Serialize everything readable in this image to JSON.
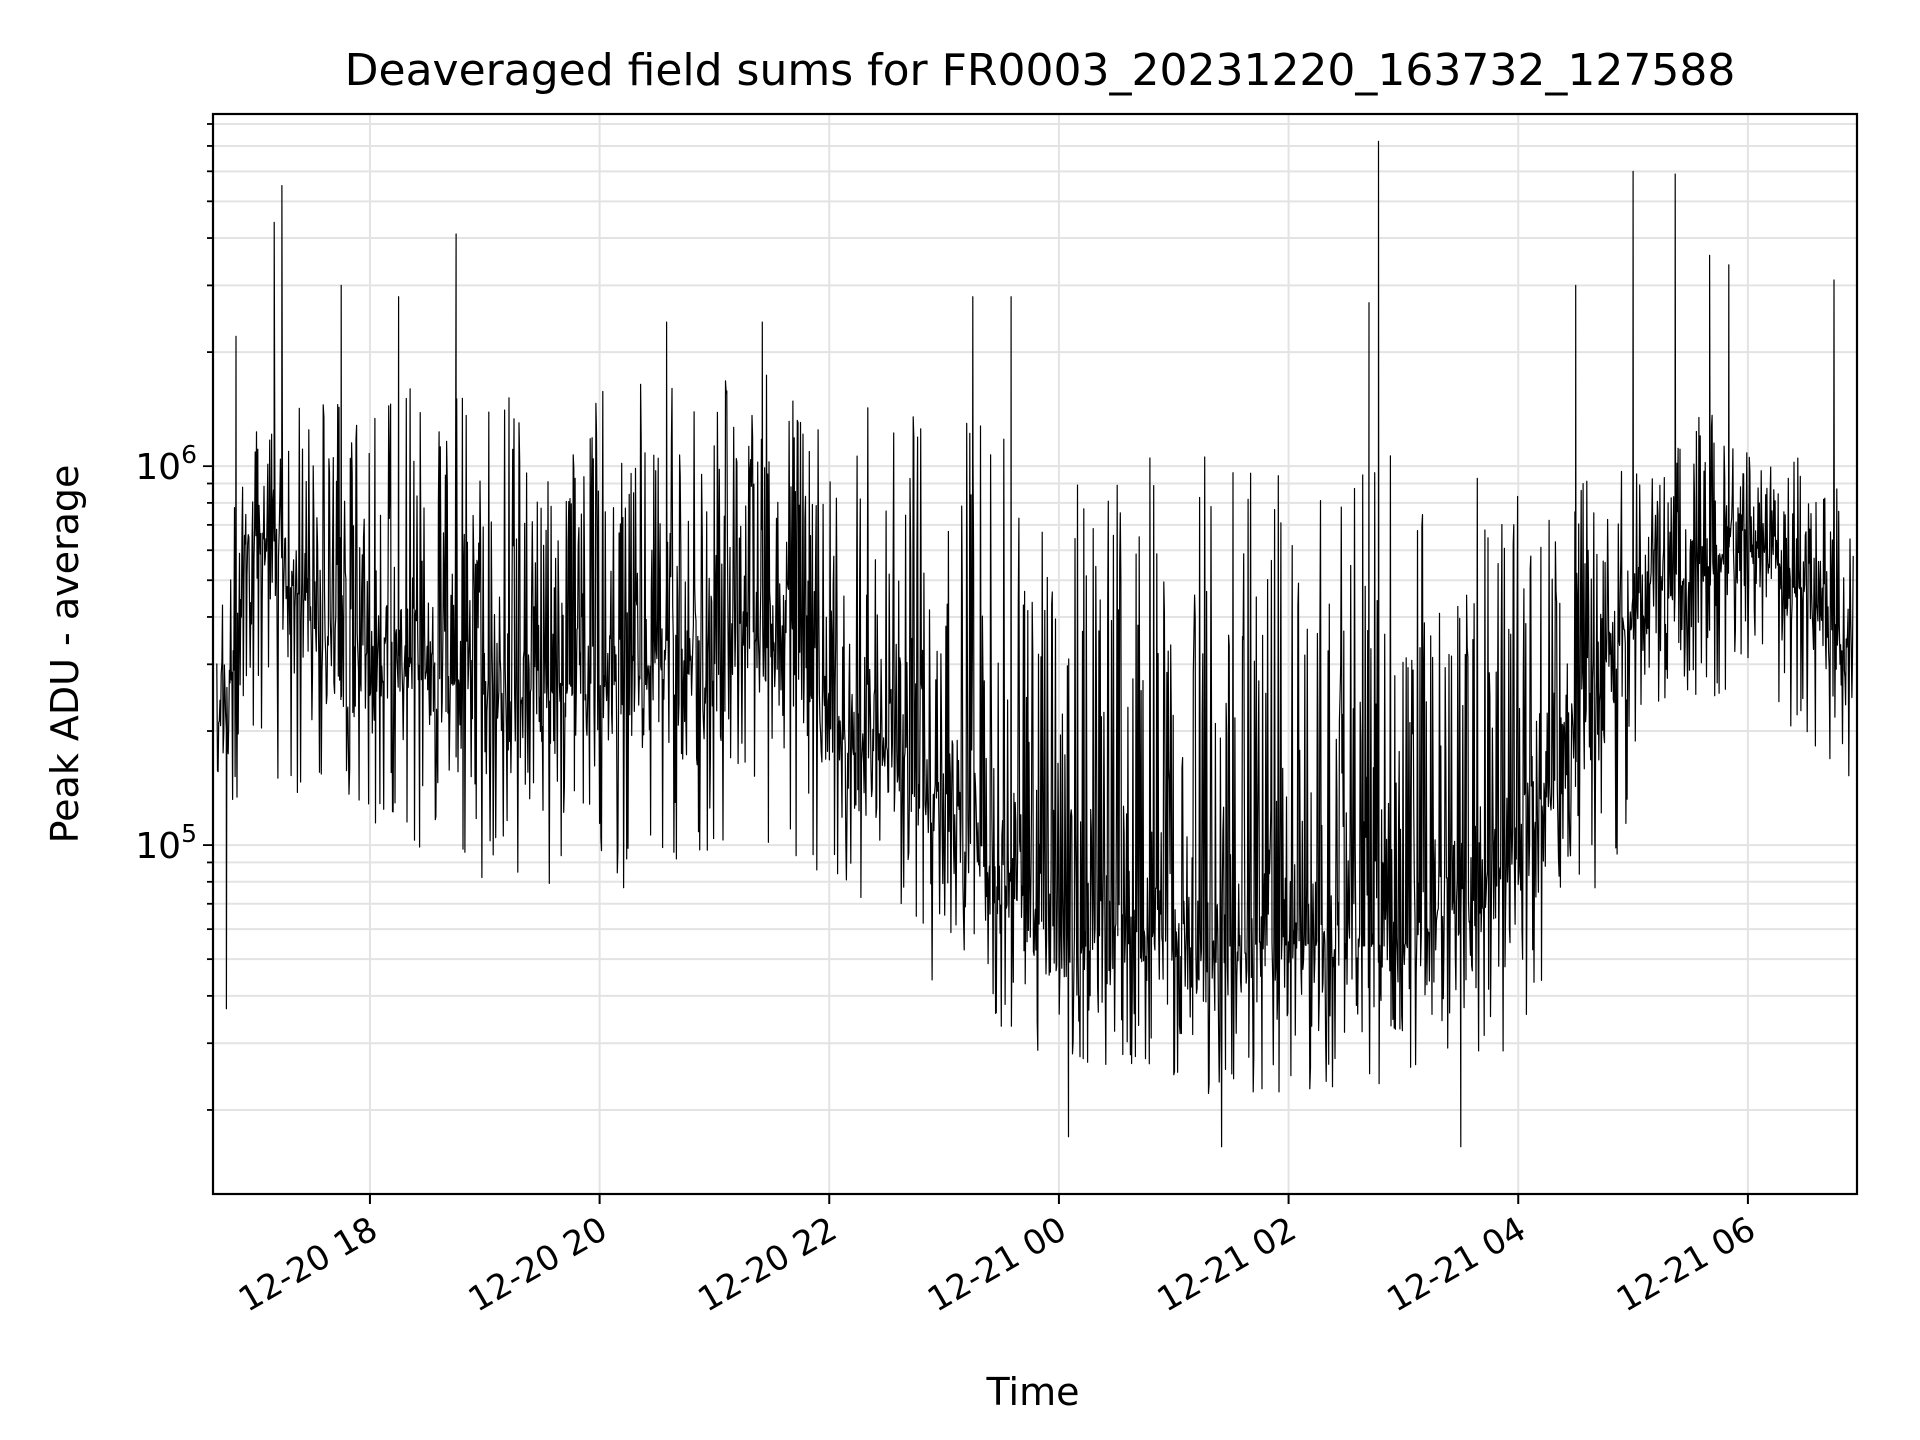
{
  "chart_data": {
    "type": "line",
    "title": "Deaveraged field sums for FR0003_20231220_163732_127588",
    "xlabel": "Time",
    "ylabel": "Peak ADU - average",
    "x_axis": {
      "type": "time",
      "range": [
        "12-20 16:38",
        "12-21 06:57"
      ]
    },
    "y_axis": {
      "scale": "log",
      "range": [
        12000,
        8500000
      ]
    },
    "x_ticks": [
      "12-20 18",
      "12-20 20",
      "12-20 22",
      "12-21 00",
      "12-21 02",
      "12-21 04",
      "12-21 06"
    ],
    "y_ticks": [
      {
        "value": 100000,
        "base": "10",
        "exp": "5"
      },
      {
        "value": 1000000,
        "base": "10",
        "exp": "6"
      }
    ],
    "grid": true,
    "series": [
      {
        "color": "#000000",
        "envelope": [
          {
            "time": "12-20 16:40",
            "low": 90000,
            "median": 180000,
            "high": 350000
          },
          {
            "time": "12-20 17:00",
            "low": 160000,
            "median": 700000,
            "high": 2000000
          },
          {
            "time": "12-20 17:30",
            "low": 120000,
            "median": 400000,
            "high": 1600000
          },
          {
            "time": "12-20 18:00",
            "low": 110000,
            "median": 330000,
            "high": 1600000
          },
          {
            "time": "12-20 19:00",
            "low": 80000,
            "median": 250000,
            "high": 1600000
          },
          {
            "time": "12-20 20:00",
            "low": 75000,
            "median": 260000,
            "high": 1650000
          },
          {
            "time": "12-20 21:00",
            "low": 80000,
            "median": 320000,
            "high": 1800000
          },
          {
            "time": "12-20 21:30",
            "low": 85000,
            "median": 350000,
            "high": 1800000
          },
          {
            "time": "12-20 22:00",
            "low": 80000,
            "median": 220000,
            "high": 1600000
          },
          {
            "time": "12-20 23:00",
            "low": 40000,
            "median": 110000,
            "high": 1350000
          },
          {
            "time": "12-21 00:00",
            "low": 25000,
            "median": 60000,
            "high": 1200000
          },
          {
            "time": "12-21 01:00",
            "low": 22000,
            "median": 55000,
            "high": 1200000
          },
          {
            "time": "12-21 02:00",
            "low": 22000,
            "median": 55000,
            "high": 1200000
          },
          {
            "time": "12-21 03:00",
            "low": 22000,
            "median": 55000,
            "high": 1100000
          },
          {
            "time": "12-21 04:00",
            "low": 28000,
            "median": 90000,
            "high": 1000000
          },
          {
            "time": "12-21 05:00",
            "low": 110000,
            "median": 380000,
            "high": 1200000
          },
          {
            "time": "12-21 06:00",
            "low": 280000,
            "median": 650000,
            "high": 1500000
          },
          {
            "time": "12-21 06:55",
            "low": 130000,
            "median": 300000,
            "high": 800000
          }
        ],
        "spikes": [
          {
            "time": "12-20 16:50",
            "value": 2200000
          },
          {
            "time": "12-20 17:10",
            "value": 4400000
          },
          {
            "time": "12-20 17:14",
            "value": 5500000
          },
          {
            "time": "12-20 17:45",
            "value": 3000000
          },
          {
            "time": "12-20 18:15",
            "value": 2800000
          },
          {
            "time": "12-20 18:45",
            "value": 4100000
          },
          {
            "time": "12-20 20:35",
            "value": 2400000
          },
          {
            "time": "12-20 21:25",
            "value": 2400000
          },
          {
            "time": "12-20 23:15",
            "value": 2800000
          },
          {
            "time": "12-20 23:35",
            "value": 2800000
          },
          {
            "time": "12-21 02:42",
            "value": 2700000
          },
          {
            "time": "12-21 02:47",
            "value": 7200000
          },
          {
            "time": "12-21 04:30",
            "value": 3000000
          },
          {
            "time": "12-21 05:00",
            "value": 6000000
          },
          {
            "time": "12-21 05:22",
            "value": 5900000
          },
          {
            "time": "12-21 05:40",
            "value": 3600000
          },
          {
            "time": "12-21 05:50",
            "value": 3400000
          },
          {
            "time": "12-21 06:45",
            "value": 3100000
          }
        ],
        "dips": [
          {
            "time": "12-20 16:45",
            "value": 37000
          },
          {
            "time": "12-21 00:05",
            "value": 17000
          },
          {
            "time": "12-21 01:25",
            "value": 16000
          },
          {
            "time": "12-21 03:30",
            "value": 16000
          }
        ]
      }
    ]
  }
}
